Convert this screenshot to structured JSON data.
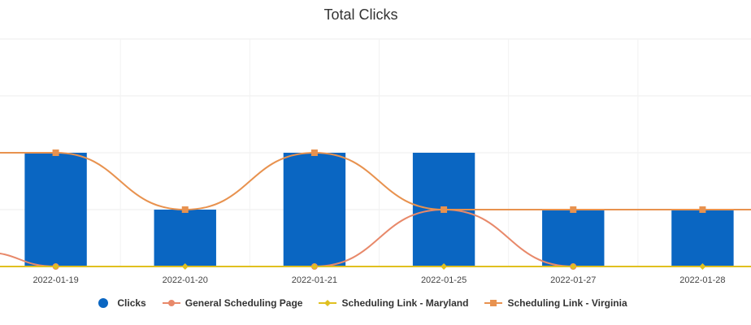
{
  "chart_data": {
    "type": "bar",
    "title": "Total Clicks",
    "categories": [
      "2022-01-19",
      "2022-01-20",
      "2022-01-21",
      "2022-01-25",
      "2022-01-27",
      "2022-01-28"
    ],
    "ylim": [
      0,
      4
    ],
    "grid": true,
    "legend_position": "bottom-center",
    "series": [
      {
        "name": "Clicks",
        "type": "bar",
        "color": "#0a66c2",
        "marker": "circle",
        "values": [
          2,
          1,
          2,
          2,
          1,
          1
        ]
      },
      {
        "name": "General Scheduling Page",
        "type": "spline",
        "color": "#e8896a",
        "marker": "circle",
        "values": [
          0,
          null,
          0,
          1,
          0,
          null
        ]
      },
      {
        "name": "Scheduling Link - Maryland",
        "type": "line",
        "color": "#e0c020",
        "marker": "diamond",
        "values": [
          0,
          0,
          0,
          0,
          0,
          0
        ]
      },
      {
        "name": "Scheduling Link - Virginia",
        "type": "spline",
        "color": "#e8924f",
        "marker": "square",
        "values": [
          2,
          1,
          2,
          1,
          1,
          1
        ]
      }
    ]
  }
}
